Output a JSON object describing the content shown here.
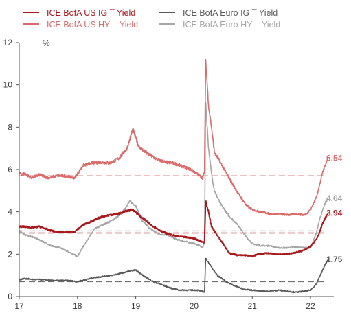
{
  "chart_data": {
    "type": "line",
    "ylabel": "%",
    "ylim": [
      0,
      12
    ],
    "yticks": [
      "0",
      "2",
      "4",
      "6",
      "8",
      "10",
      "12"
    ],
    "xlim": [
      17,
      22.4
    ],
    "xticks": [
      "17",
      "18",
      "19",
      "20",
      "21",
      "22"
    ],
    "grid": false,
    "legend_position": "top",
    "series": [
      {
        "name": "ICE BofA US IG ¯ Yield",
        "color": "#a8191e",
        "end_label": "3.94",
        "avg_line": 3.0,
        "x": [
          17.0,
          17.1,
          17.2,
          17.35,
          17.5,
          17.65,
          17.8,
          17.95,
          18.1,
          18.25,
          18.4,
          18.55,
          18.7,
          18.85,
          18.95,
          19.1,
          19.25,
          19.4,
          19.55,
          19.7,
          19.85,
          20.0,
          20.12,
          20.18,
          20.2,
          20.25,
          20.3,
          20.4,
          20.5,
          20.6,
          20.75,
          20.9,
          21.0,
          21.1,
          21.25,
          21.4,
          21.55,
          21.7,
          21.85,
          22.0,
          22.1,
          22.15,
          22.2,
          22.25,
          22.3
        ],
        "values": [
          3.3,
          3.3,
          3.25,
          3.3,
          3.15,
          3.05,
          3.05,
          3.05,
          3.4,
          3.55,
          3.75,
          3.85,
          3.9,
          4.05,
          4.1,
          3.75,
          3.4,
          3.15,
          2.95,
          2.85,
          2.8,
          2.75,
          2.6,
          2.55,
          4.5,
          4.0,
          3.3,
          2.9,
          2.5,
          2.05,
          1.95,
          1.95,
          1.9,
          2.0,
          2.05,
          2.0,
          2.0,
          2.05,
          2.15,
          2.35,
          2.7,
          3.0,
          3.4,
          3.7,
          3.94
        ]
      },
      {
        "name": "ICE BofA US HY ¯ Yield",
        "color": "#d96b6b",
        "end_label": "6.54",
        "avg_line": 5.7,
        "x": [
          17.0,
          17.1,
          17.2,
          17.35,
          17.5,
          17.65,
          17.8,
          17.95,
          18.1,
          18.25,
          18.4,
          18.55,
          18.7,
          18.85,
          18.95,
          19.05,
          19.2,
          19.35,
          19.5,
          19.65,
          19.8,
          19.95,
          20.1,
          20.15,
          20.18,
          20.2,
          20.25,
          20.3,
          20.35,
          20.45,
          20.6,
          20.75,
          20.9,
          21.0,
          21.15,
          21.3,
          21.45,
          21.6,
          21.75,
          21.9,
          22.0,
          22.1,
          22.15,
          22.2,
          22.25,
          22.3
        ],
        "values": [
          5.8,
          5.8,
          5.6,
          5.75,
          5.6,
          5.7,
          5.7,
          5.6,
          6.2,
          6.3,
          6.35,
          6.3,
          6.5,
          7.0,
          7.9,
          7.1,
          6.75,
          6.5,
          6.35,
          6.3,
          6.15,
          6.0,
          5.7,
          5.6,
          5.9,
          11.2,
          9.0,
          8.0,
          6.8,
          6.35,
          5.6,
          4.9,
          4.3,
          4.1,
          4.0,
          3.9,
          3.9,
          3.85,
          3.9,
          3.85,
          4.1,
          4.7,
          5.2,
          5.8,
          6.2,
          6.54
        ]
      },
      {
        "name": "ICE BofA Euro IG ¯ Yield",
        "color": "#595959",
        "end_label": "1.75",
        "avg_line": 0.7,
        "x": [
          17.0,
          17.1,
          17.25,
          17.4,
          17.55,
          17.7,
          17.85,
          18.0,
          18.15,
          18.3,
          18.45,
          18.6,
          18.75,
          18.9,
          19.0,
          19.15,
          19.3,
          19.45,
          19.6,
          19.75,
          19.9,
          20.05,
          20.15,
          20.18,
          20.2,
          20.25,
          20.3,
          20.4,
          20.55,
          20.7,
          20.85,
          21.0,
          21.15,
          21.3,
          21.45,
          21.6,
          21.75,
          21.9,
          22.0,
          22.1,
          22.15,
          22.2,
          22.25,
          22.3
        ],
        "values": [
          0.8,
          0.85,
          0.8,
          0.8,
          0.75,
          0.75,
          0.75,
          0.7,
          0.8,
          0.9,
          0.95,
          1.0,
          1.1,
          1.2,
          1.25,
          0.95,
          0.7,
          0.55,
          0.4,
          0.3,
          0.3,
          0.3,
          0.25,
          0.2,
          1.8,
          1.6,
          1.4,
          1.0,
          0.7,
          0.5,
          0.35,
          0.3,
          0.25,
          0.25,
          0.3,
          0.25,
          0.2,
          0.25,
          0.3,
          0.6,
          0.9,
          1.2,
          1.5,
          1.75
        ]
      },
      {
        "name": "ICE BofA Euro HY ¯ Yield",
        "color": "#a6a6a6",
        "end_label": "4.64",
        "avg_line": 3.1,
        "x": [
          17.0,
          17.1,
          17.25,
          17.4,
          17.55,
          17.7,
          17.85,
          18.0,
          18.15,
          18.3,
          18.45,
          18.6,
          18.75,
          18.9,
          19.0,
          19.1,
          19.25,
          19.4,
          19.55,
          19.7,
          19.85,
          20.0,
          20.1,
          20.15,
          20.18,
          20.2,
          20.25,
          20.3,
          20.35,
          20.45,
          20.6,
          20.75,
          20.9,
          21.0,
          21.15,
          21.3,
          21.45,
          21.6,
          21.75,
          21.9,
          22.0,
          22.1,
          22.15,
          22.2,
          22.25,
          22.3
        ],
        "values": [
          3.1,
          2.9,
          2.8,
          2.6,
          2.4,
          2.3,
          2.1,
          1.9,
          2.6,
          3.2,
          3.4,
          3.6,
          3.9,
          4.5,
          4.3,
          3.6,
          3.2,
          2.95,
          2.9,
          2.7,
          2.6,
          2.5,
          2.4,
          2.3,
          2.6,
          9.2,
          7.0,
          5.8,
          5.0,
          4.4,
          3.8,
          3.4,
          2.8,
          2.5,
          2.4,
          2.4,
          2.3,
          2.3,
          2.35,
          2.3,
          2.3,
          3.0,
          3.6,
          4.0,
          4.4,
          4.64
        ]
      }
    ]
  }
}
